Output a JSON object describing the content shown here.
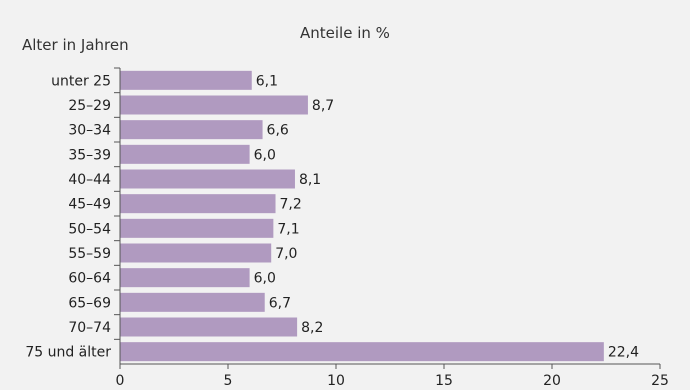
{
  "chart_data": {
    "type": "bar",
    "orientation": "horizontal",
    "title": "Anteile in %",
    "ylabel": "Alter in Jahren",
    "xlabel": "",
    "categories": [
      "unter 25",
      "25–29",
      "30–34",
      "35–39",
      "40–44",
      "45–49",
      "50–54",
      "55–59",
      "60–64",
      "65–69",
      "70–74",
      "75 und älter"
    ],
    "values": [
      6.1,
      8.7,
      6.6,
      6.0,
      8.1,
      7.2,
      7.1,
      7.0,
      6.0,
      6.7,
      8.2,
      22.4
    ],
    "value_labels": [
      "6,1",
      "8,7",
      "6,6",
      "6,0",
      "8,1",
      "7,2",
      "7,1",
      "7,0",
      "6,0",
      "6,7",
      "8,2",
      "22,4"
    ],
    "xlim": [
      0,
      25
    ],
    "xticks": [
      0,
      5,
      10,
      15,
      20,
      25
    ],
    "grid": false,
    "colors": {
      "bar": "#b09ac0",
      "axis": "#555555",
      "background": "#f2f2f2"
    }
  }
}
